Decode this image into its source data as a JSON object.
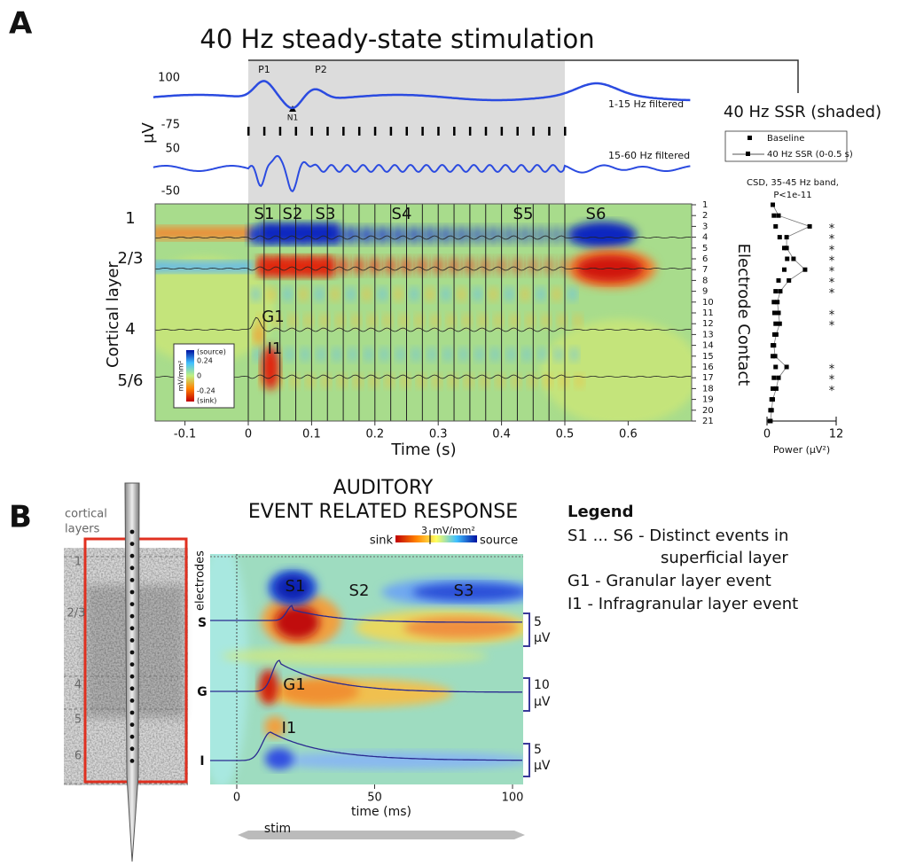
{
  "panel_a": {
    "label": "A",
    "title": "40 Hz steady-state stimulation",
    "trace_unit": "μV",
    "trace_yticks": [
      "100",
      "-75",
      "50",
      "-50"
    ],
    "peaks": [
      "P1",
      "P2",
      "N1"
    ],
    "trace_labels": [
      "1-15 Hz filtered",
      "15-60 Hz filtered"
    ],
    "ssr_label": "40 Hz SSR (shaded)",
    "layer_axis_title": "Cortical layer",
    "layers": [
      "1",
      "2/3",
      "4",
      "5/6"
    ],
    "events": [
      "S1",
      "S2",
      "S3",
      "S4",
      "S5",
      "S6",
      "G1",
      "I1"
    ],
    "colorbar_unit": "mV/mm²",
    "colorbar_labels": [
      "(source)",
      "0.24",
      "0",
      "-0.24",
      "(sink)"
    ],
    "time_ticks": [
      -0.1,
      0,
      0.1,
      0.2,
      0.3,
      0.4,
      0.5,
      0.6
    ],
    "time_title": "Time (s)",
    "electrode_title": "Electrode Contact",
    "electrodes": [
      "1",
      "2",
      "3",
      "4",
      "5",
      "6",
      "7",
      "8",
      "9",
      "10",
      "11",
      "12",
      "13",
      "14",
      "15",
      "16",
      "17",
      "18",
      "19",
      "20",
      "21"
    ]
  },
  "power_chart": {
    "type": "scatter",
    "subtitle": [
      "CSD, 35-45 Hz band,",
      "P<1e-11"
    ],
    "series": [
      {
        "name": "Baseline",
        "color": "#000000",
        "values": [
          1.0,
          1.2,
          1.5,
          2.2,
          3.0,
          3.5,
          3.0,
          2.0,
          1.5,
          1.2,
          1.3,
          1.5,
          1.3,
          1.0,
          1.0,
          1.5,
          1.2,
          1.0,
          0.8,
          0.6,
          0.5
        ]
      },
      {
        "name": "40 Hz SSR (0-0.5 s)",
        "color": "#000000",
        "values": [
          1.0,
          2.0,
          7.4,
          3.4,
          3.4,
          4.6,
          6.6,
          3.8,
          2.3,
          1.8,
          2.0,
          2.2,
          1.6,
          1.2,
          1.4,
          3.4,
          2.0,
          1.6,
          1.0,
          0.8,
          0.6
        ]
      }
    ],
    "stars": [
      null,
      null,
      "*",
      "*",
      "*",
      "*",
      "*",
      "*",
      "*",
      null,
      "*",
      "*",
      null,
      null,
      null,
      "*",
      "*",
      "*",
      null,
      null,
      null
    ],
    "xlim": [
      0,
      12
    ],
    "xticks": [
      0,
      12
    ],
    "xlabel": "Power (μV²)"
  },
  "panel_b": {
    "label": "B",
    "title": [
      "AUDITORY",
      "EVENT RELATED RESPONSE"
    ],
    "cortex_title": [
      "cortical",
      "layers"
    ],
    "layers": [
      "1",
      "2/3",
      "4",
      "5",
      "6"
    ],
    "electrodes_title": "electrodes",
    "groups": [
      "S",
      "G",
      "I"
    ],
    "colorbar": [
      "sink",
      "source",
      "3",
      "mV/mm²"
    ],
    "events": [
      "S1",
      "S2",
      "S3",
      "G1",
      "I1"
    ],
    "scalebars": [
      [
        "5",
        "μV"
      ],
      [
        "10",
        "μV"
      ],
      [
        "5",
        "μV"
      ]
    ],
    "xticks": [
      0,
      50,
      100
    ],
    "xlabel": "time (ms)",
    "stim": "stim"
  },
  "legend": {
    "title": "Legend",
    "items": [
      "S1 ... S6 - Distinct events in",
      "superficial layer",
      "G1 - Granular layer event",
      "I1 - Infragranular layer event"
    ]
  }
}
